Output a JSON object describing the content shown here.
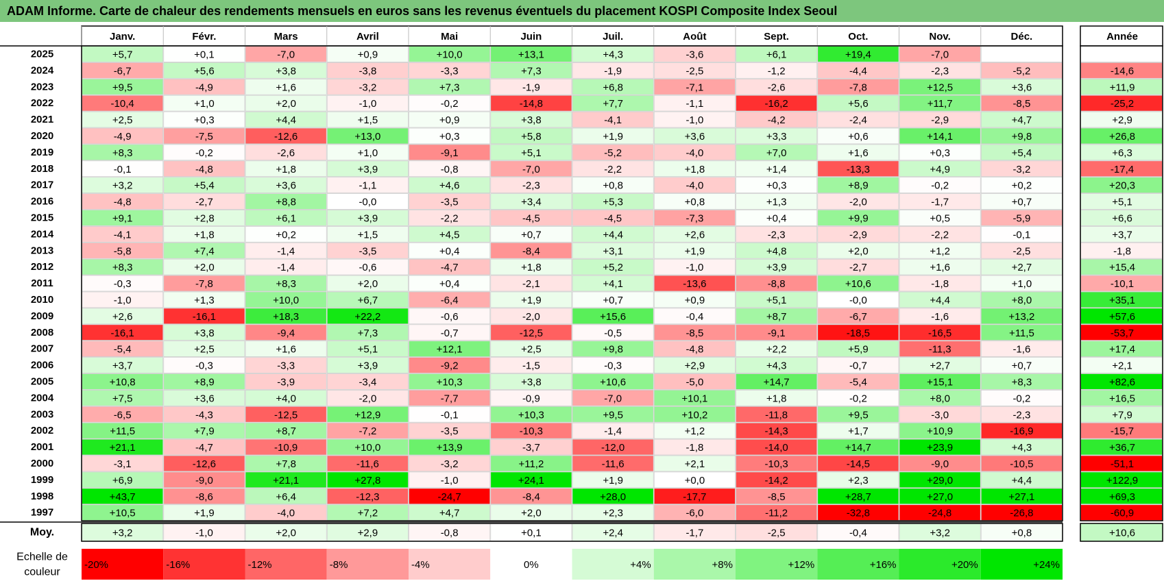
{
  "title": "ADAM Informe. Carte de chaleur des rendements mensuels en euros sans les revenus éventuels du placement KOSPI Composite Index Seoul",
  "chart_data": {
    "type": "heatmap",
    "title": "ADAM Informe. Carte de chaleur des rendements mensuels en euros sans les revenus éventuels du placement KOSPI Composite Index Seoul",
    "months": [
      "Janv.",
      "Févr.",
      "Mars",
      "Avril",
      "Mai",
      "Juin",
      "Juil.",
      "Août",
      "Sept.",
      "Oct.",
      "Nov.",
      "Déc."
    ],
    "year_header": "Année",
    "rows": [
      {
        "year": "2025",
        "values": [
          "+5,7",
          "+0,1",
          "-7,0",
          "+0,9",
          "+10,0",
          "+13,1",
          "+4,3",
          "-3,6",
          "+6,1",
          "+19,4",
          "-7,0",
          ""
        ],
        "annual": ""
      },
      {
        "year": "2024",
        "values": [
          "-6,7",
          "+5,6",
          "+3,8",
          "-3,8",
          "-3,3",
          "+7,3",
          "-1,9",
          "-2,5",
          "-1,2",
          "-4,4",
          "-2,3",
          "-5,2"
        ],
        "annual": "-14,6"
      },
      {
        "year": "2023",
        "values": [
          "+9,5",
          "-4,9",
          "+1,6",
          "-3,2",
          "+7,3",
          "-1,9",
          "+6,8",
          "-7,1",
          "-2,6",
          "-7,8",
          "+12,5",
          "+3,6"
        ],
        "annual": "+11,9"
      },
      {
        "year": "2022",
        "values": [
          "-10,4",
          "+1,0",
          "+2,0",
          "-1,0",
          "-0,2",
          "-14,8",
          "+7,7",
          "-1,1",
          "-16,2",
          "+5,6",
          "+11,7",
          "-8,5"
        ],
        "annual": "-25,2"
      },
      {
        "year": "2021",
        "values": [
          "+2,5",
          "+0,3",
          "+4,4",
          "+1,5",
          "+0,9",
          "+3,8",
          "-4,1",
          "-1,0",
          "-4,2",
          "-2,4",
          "-2,9",
          "+4,7"
        ],
        "annual": "+2,9"
      },
      {
        "year": "2020",
        "values": [
          "-4,9",
          "-7,5",
          "-12,6",
          "+13,0",
          "+0,3",
          "+5,8",
          "+1,9",
          "+3,6",
          "+3,3",
          "+0,6",
          "+14,1",
          "+9,8"
        ],
        "annual": "+26,8"
      },
      {
        "year": "2019",
        "values": [
          "+8,3",
          "-0,2",
          "-2,6",
          "+1,0",
          "-9,1",
          "+5,1",
          "-5,2",
          "-4,0",
          "+7,0",
          "+1,6",
          "+0,3",
          "+5,4"
        ],
        "annual": "+6,3"
      },
      {
        "year": "2018",
        "values": [
          "-0,1",
          "-4,8",
          "+1,8",
          "+3,9",
          "-0,8",
          "-7,0",
          "-2,2",
          "+1,8",
          "+1,4",
          "-13,3",
          "+4,9",
          "-3,2"
        ],
        "annual": "-17,4"
      },
      {
        "year": "2017",
        "values": [
          "+3,2",
          "+5,4",
          "+3,6",
          "-1,1",
          "+4,6",
          "-2,3",
          "+0,8",
          "-4,0",
          "+0,3",
          "+8,9",
          "-0,2",
          "+0,2"
        ],
        "annual": "+20,3"
      },
      {
        "year": "2016",
        "values": [
          "-4,8",
          "-2,7",
          "+8,8",
          "-0,0",
          "-3,5",
          "+3,4",
          "+5,3",
          "+0,8",
          "+1,3",
          "-2,0",
          "-1,7",
          "+0,7"
        ],
        "annual": "+5,1"
      },
      {
        "year": "2015",
        "values": [
          "+9,1",
          "+2,8",
          "+6,1",
          "+3,9",
          "-2,2",
          "-4,5",
          "-4,5",
          "-7,3",
          "+0,4",
          "+9,9",
          "+0,5",
          "-5,9"
        ],
        "annual": "+6,6"
      },
      {
        "year": "2014",
        "values": [
          "-4,1",
          "+1,8",
          "+0,2",
          "+1,5",
          "+4,5",
          "+0,7",
          "+4,4",
          "+2,6",
          "-2,3",
          "-2,9",
          "-2,2",
          "-0,1"
        ],
        "annual": "+3,7"
      },
      {
        "year": "2013",
        "values": [
          "-5,8",
          "+7,4",
          "-1,4",
          "-3,5",
          "+0,4",
          "-8,4",
          "+3,1",
          "+1,9",
          "+4,8",
          "+2,0",
          "+1,2",
          "-2,5"
        ],
        "annual": "-1,8"
      },
      {
        "year": "2012",
        "values": [
          "+8,3",
          "+2,0",
          "-1,4",
          "-0,6",
          "-4,7",
          "+1,8",
          "+5,2",
          "-1,0",
          "+3,9",
          "-2,7",
          "+1,6",
          "+2,7"
        ],
        "annual": "+15,4"
      },
      {
        "year": "2011",
        "values": [
          "-0,3",
          "-7,8",
          "+8,3",
          "+2,0",
          "+0,4",
          "-2,1",
          "+4,1",
          "-13,6",
          "-8,8",
          "+10,6",
          "-1,8",
          "+1,0"
        ],
        "annual": "-10,1"
      },
      {
        "year": "2010",
        "values": [
          "-1,0",
          "+1,3",
          "+10,0",
          "+6,7",
          "-6,4",
          "+1,9",
          "+0,7",
          "+0,9",
          "+5,1",
          "-0,0",
          "+4,4",
          "+8,0"
        ],
        "annual": "+35,1"
      },
      {
        "year": "2009",
        "values": [
          "+2,6",
          "-16,1",
          "+18,3",
          "+22,2",
          "-0,6",
          "-2,0",
          "+15,6",
          "-0,4",
          "+8,7",
          "-6,7",
          "-1,6",
          "+13,2"
        ],
        "annual": "+57,6"
      },
      {
        "year": "2008",
        "values": [
          "-16,1",
          "+3,8",
          "-9,4",
          "+7,3",
          "-0,7",
          "-12,5",
          "-0,5",
          "-8,5",
          "-9,1",
          "-18,5",
          "-16,5",
          "+11,5"
        ],
        "annual": "-53,7"
      },
      {
        "year": "2007",
        "values": [
          "-5,4",
          "+2,5",
          "+1,6",
          "+5,1",
          "+12,1",
          "+2,5",
          "+9,8",
          "-4,8",
          "+2,2",
          "+5,9",
          "-11,3",
          "-1,6"
        ],
        "annual": "+17,4"
      },
      {
        "year": "2006",
        "values": [
          "+3,7",
          "-0,3",
          "-3,3",
          "+3,9",
          "-9,2",
          "-1,5",
          "-0,3",
          "+2,9",
          "+4,3",
          "-0,7",
          "+2,7",
          "+0,7"
        ],
        "annual": "+2,1"
      },
      {
        "year": "2005",
        "values": [
          "+10,8",
          "+8,9",
          "-3,9",
          "-3,4",
          "+10,3",
          "+3,8",
          "+10,6",
          "-5,0",
          "+14,7",
          "-5,4",
          "+15,1",
          "+8,3"
        ],
        "annual": "+82,6"
      },
      {
        "year": "2004",
        "values": [
          "+7,5",
          "+3,6",
          "+4,0",
          "-2,0",
          "-7,7",
          "-0,9",
          "-7,0",
          "+10,1",
          "+1,8",
          "-0,2",
          "+8,0",
          "-0,2"
        ],
        "annual": "+16,5"
      },
      {
        "year": "2003",
        "values": [
          "-6,5",
          "-4,3",
          "-12,5",
          "+12,9",
          "-0,1",
          "+10,3",
          "+9,5",
          "+10,2",
          "-11,8",
          "+9,5",
          "-3,0",
          "-2,3"
        ],
        "annual": "+7,9"
      },
      {
        "year": "2002",
        "values": [
          "+11,5",
          "+7,9",
          "+8,7",
          "-7,2",
          "-3,5",
          "-10,3",
          "-1,4",
          "+1,2",
          "-14,3",
          "+1,7",
          "+10,9",
          "-16,9"
        ],
        "annual": "-15,7"
      },
      {
        "year": "2001",
        "values": [
          "+21,1",
          "-4,7",
          "-10,9",
          "+10,0",
          "+13,9",
          "-3,7",
          "-12,0",
          "-1,8",
          "-14,0",
          "+14,7",
          "+23,9",
          "+4,3"
        ],
        "annual": "+36,7"
      },
      {
        "year": "2000",
        "values": [
          "-3,1",
          "-12,6",
          "+7,8",
          "-11,6",
          "-3,2",
          "+11,2",
          "-11,6",
          "+2,1",
          "-10,3",
          "-14,5",
          "-9,0",
          "-10,5"
        ],
        "annual": "-51,1"
      },
      {
        "year": "1999",
        "values": [
          "+6,9",
          "-9,0",
          "+21,1",
          "+27,8",
          "-1,0",
          "+24,1",
          "+1,9",
          "+0,0",
          "-14,2",
          "+2,3",
          "+29,0",
          "+4,4"
        ],
        "annual": "+122,9"
      },
      {
        "year": "1998",
        "values": [
          "+43,7",
          "-8,6",
          "+6,4",
          "-12,3",
          "-24,7",
          "-8,4",
          "+28,0",
          "-17,7",
          "-8,5",
          "+28,7",
          "+27,0",
          "+27,1"
        ],
        "annual": "+69,3"
      },
      {
        "year": "1997",
        "values": [
          "+10,5",
          "+1,9",
          "-4,0",
          "+7,2",
          "+4,7",
          "+2,0",
          "+2,3",
          "-6,0",
          "-11,2",
          "-32,8",
          "-24,8",
          "-26,8"
        ],
        "annual": "-60,9"
      }
    ],
    "average": {
      "label": "Moy.",
      "values": [
        "+3,2",
        "-1,0",
        "+2,0",
        "+2,9",
        "-0,8",
        "+0,1",
        "+2,4",
        "-1,7",
        "-2,5",
        "-0,4",
        "+3,2",
        "+0,8"
      ],
      "annual": "+10,6"
    },
    "scale": {
      "label_line1": "Echelle de",
      "label_line2": "couleur",
      "steps": [
        {
          "label": "-20%",
          "value": -20
        },
        {
          "label": "-16%",
          "value": -16
        },
        {
          "label": "-12%",
          "value": -12
        },
        {
          "label": "-8%",
          "value": -8
        },
        {
          "label": "-4%",
          "value": -4
        },
        {
          "label": "0%",
          "value": 0
        },
        {
          "label": "+4%",
          "value": 4
        },
        {
          "label": "+8%",
          "value": 8
        },
        {
          "label": "+12%",
          "value": 12
        },
        {
          "label": "+16%",
          "value": 16
        },
        {
          "label": "+20%",
          "value": 20
        },
        {
          "label": "+24%",
          "value": 24
        }
      ]
    },
    "colors": {
      "negative_max": "#ff0000",
      "neutral": "#ffffff",
      "positive_max": "#00e600",
      "title_bg": "#7dc67d"
    }
  }
}
